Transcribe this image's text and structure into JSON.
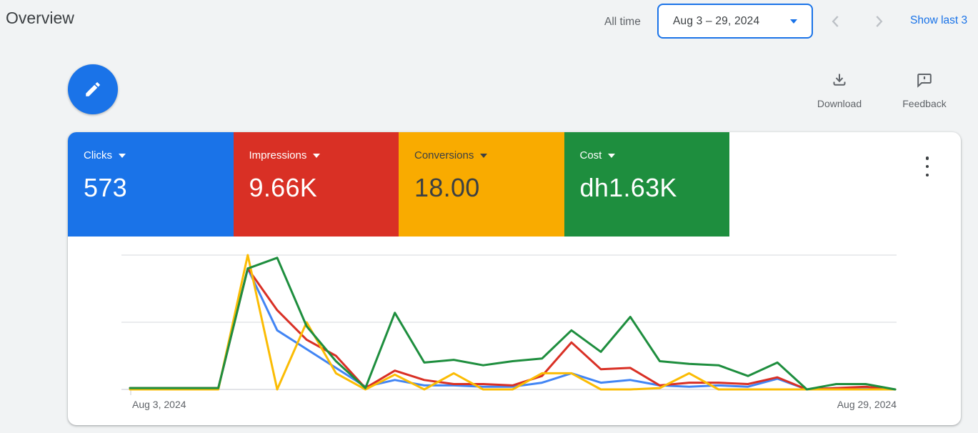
{
  "header": {
    "title": "Overview",
    "range_mode_label": "All time",
    "date_range": "Aug 3 – 29, 2024",
    "show_last_link": "Show last 3"
  },
  "toolbar": {
    "download_label": "Download",
    "feedback_label": "Feedback"
  },
  "metrics": [
    {
      "label": "Clicks",
      "value": "573",
      "bg": "#1a73e8",
      "fg": "#ffffff"
    },
    {
      "label": "Impressions",
      "value": "9.66K",
      "bg": "#d93025",
      "fg": "#ffffff"
    },
    {
      "label": "Conversions",
      "value": "18.00",
      "bg": "#f9ab00",
      "fg": "#3c4043"
    },
    {
      "label": "Cost",
      "value": "dh1.63K",
      "bg": "#1e8e3e",
      "fg": "#ffffff"
    }
  ],
  "chart_data": {
    "type": "line",
    "title": "",
    "xlabel": "",
    "ylabel": "",
    "ylim": [
      0,
      100
    ],
    "units": "percent_of_series_max (unlabeled normalized y-axis)",
    "grid": true,
    "legend_position": "none",
    "x_axis_labels": {
      "start": "Aug 3, 2024",
      "end": "Aug 29, 2024"
    },
    "x": [
      "Aug 3",
      "Aug 4",
      "Aug 5",
      "Aug 6",
      "Aug 7",
      "Aug 8",
      "Aug 9",
      "Aug 10",
      "Aug 11",
      "Aug 12",
      "Aug 13",
      "Aug 14",
      "Aug 15",
      "Aug 16",
      "Aug 17",
      "Aug 18",
      "Aug 19",
      "Aug 20",
      "Aug 21",
      "Aug 22",
      "Aug 23",
      "Aug 24",
      "Aug 25",
      "Aug 26",
      "Aug 27",
      "Aug 28",
      "Aug 29"
    ],
    "series": [
      {
        "name": "Clicks",
        "color": "#4285f4",
        "values": [
          1,
          1,
          1,
          1,
          90,
          44,
          30,
          16,
          2,
          7,
          3,
          3,
          2,
          2,
          5,
          12,
          5,
          7,
          3,
          2,
          3,
          2,
          8,
          0,
          1,
          1,
          0
        ]
      },
      {
        "name": "Impressions",
        "color": "#d93025",
        "values": [
          1,
          1,
          1,
          1,
          90,
          59,
          37,
          25,
          1,
          14,
          7,
          4,
          4,
          3,
          10,
          35,
          15,
          16,
          3,
          5,
          5,
          4,
          9,
          0,
          1,
          2,
          0
        ]
      },
      {
        "name": "Conversions",
        "color": "#fbbc04",
        "values": [
          0,
          0,
          0,
          0,
          100,
          0,
          50,
          12,
          0,
          11,
          0,
          12,
          0,
          0,
          12,
          12,
          0,
          0,
          1,
          12,
          0,
          0,
          0,
          0,
          0,
          0,
          0
        ]
      },
      {
        "name": "Cost",
        "color": "#1e8e3e",
        "values": [
          1,
          1,
          1,
          1,
          90,
          98,
          47,
          21,
          1,
          57,
          20,
          22,
          18,
          21,
          23,
          44,
          28,
          54,
          21,
          19,
          18,
          10,
          20,
          0,
          4,
          4,
          0
        ]
      }
    ]
  }
}
